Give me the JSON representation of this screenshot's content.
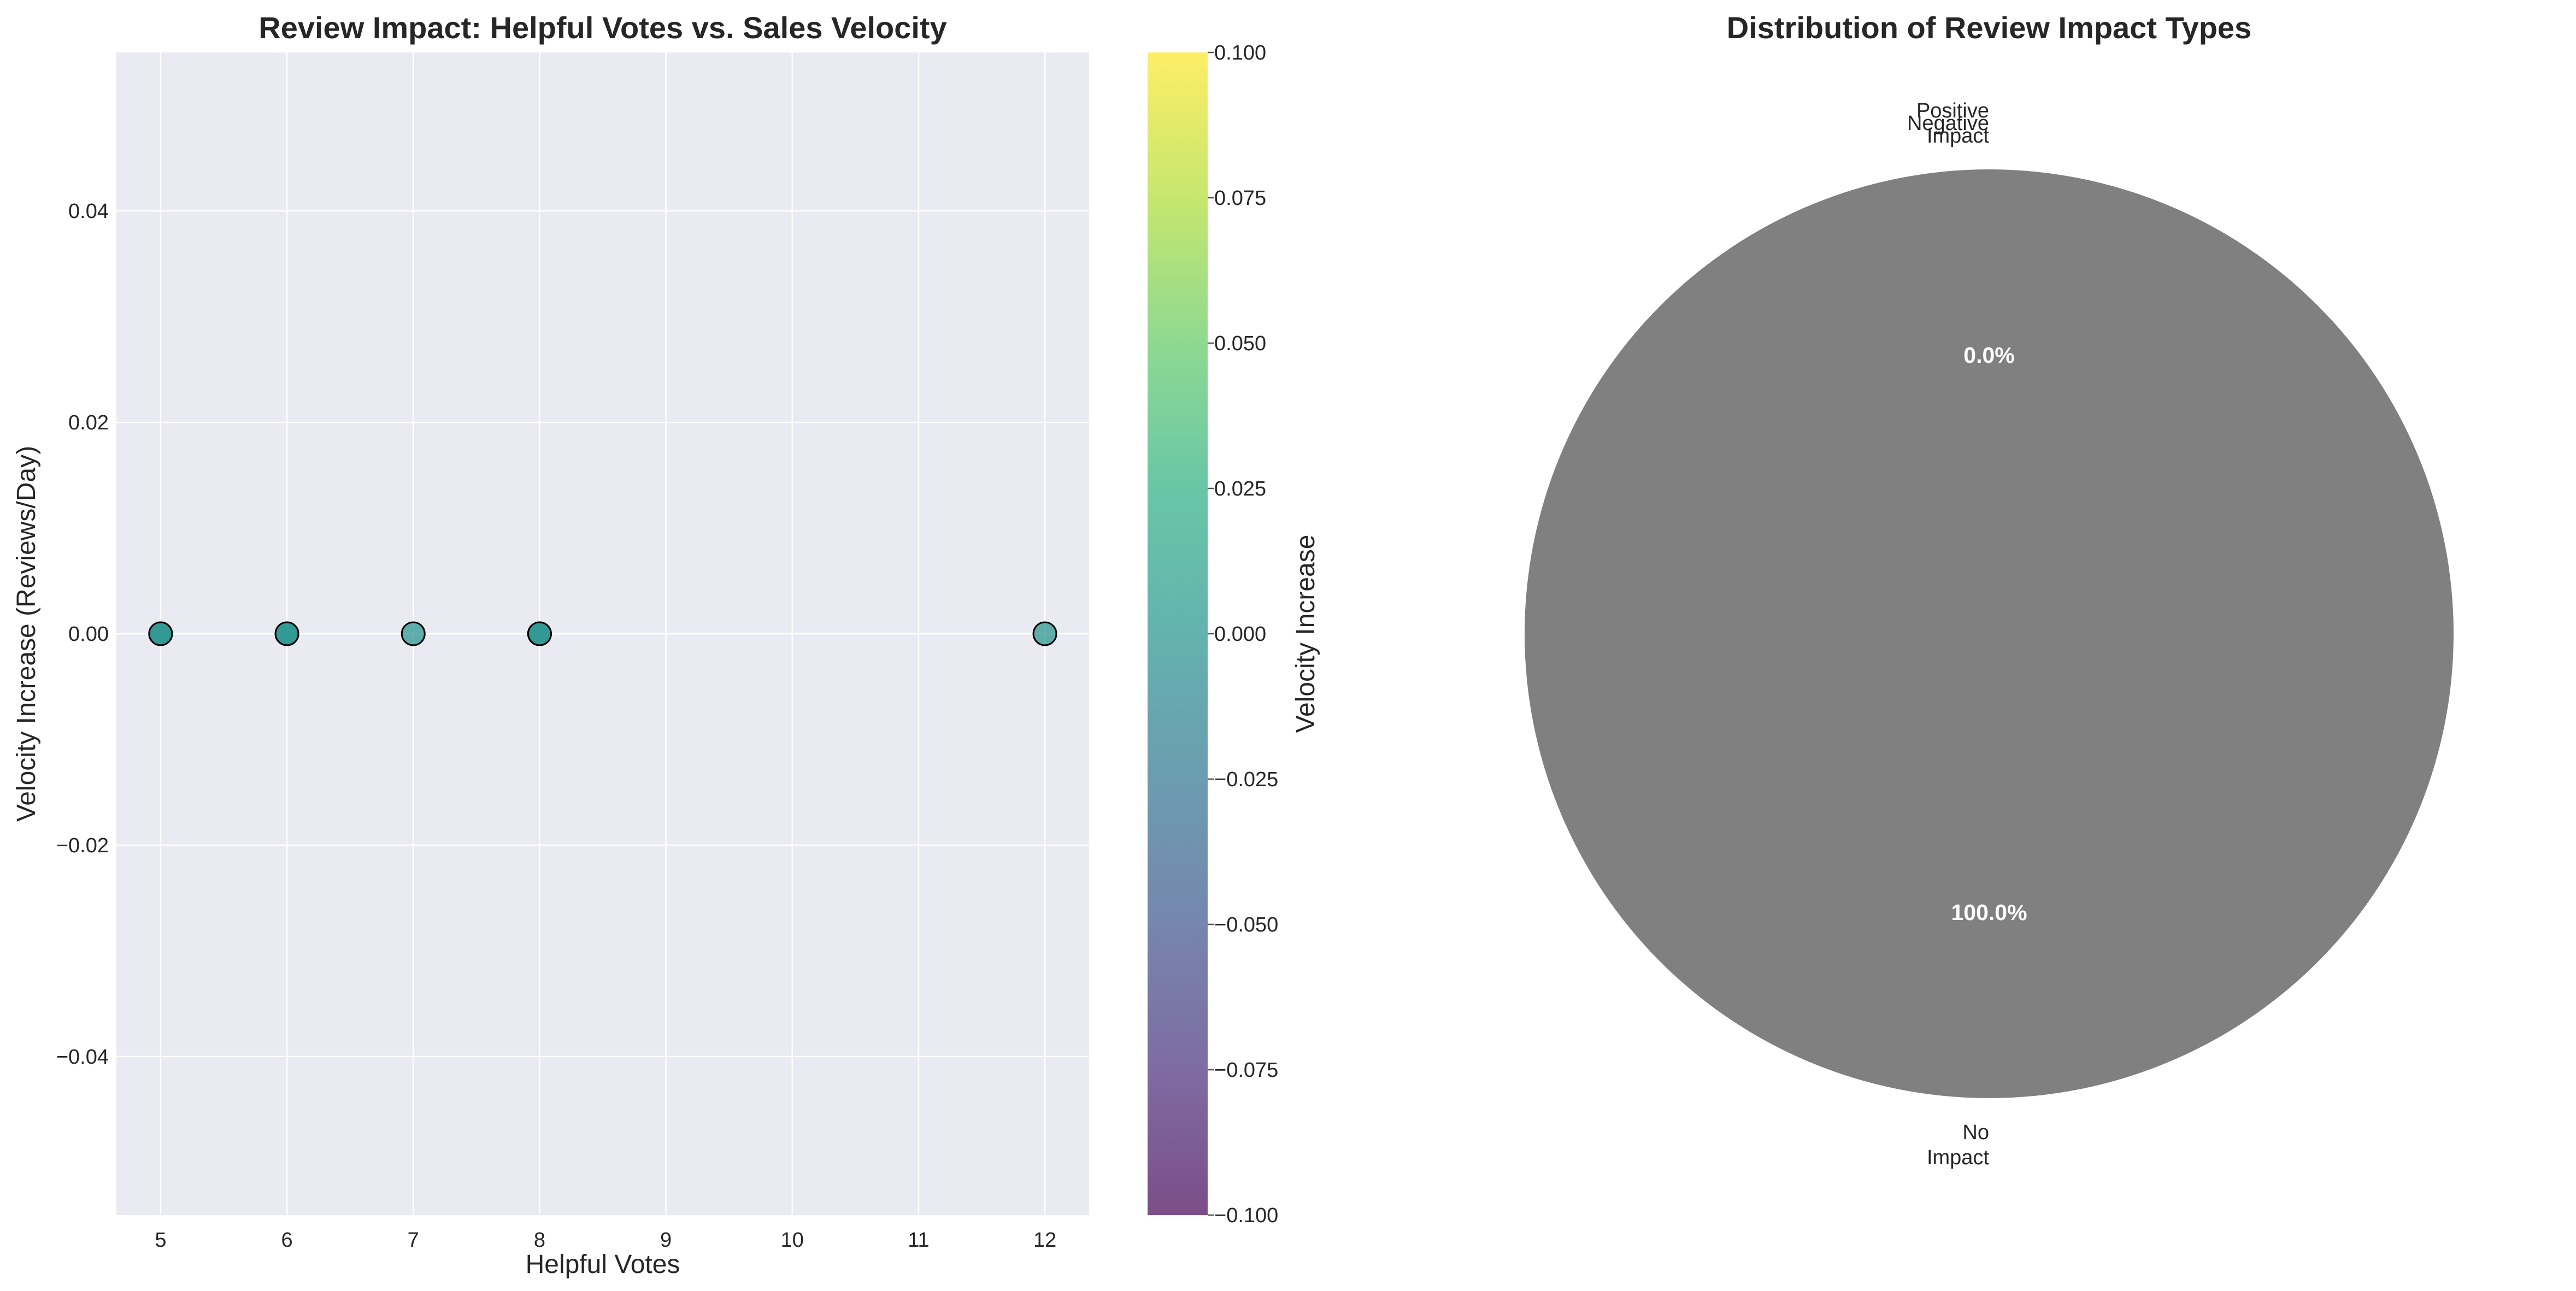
{
  "colors": {
    "plot_background": "#eaeaf2",
    "grid": "#ffffff",
    "pie_no_impact": "#808080",
    "pie_negative": "#d62728",
    "pie_positive": "#2ca02c",
    "marker_edge": "#000000",
    "colormap": "viridis"
  },
  "chart_data": [
    {
      "type": "scatter",
      "title": "Review Impact: Helpful Votes vs. Sales Velocity",
      "xlabel": "Helpful Votes",
      "ylabel": "Velocity Increase (Reviews/Day)",
      "xlim": [
        4.65,
        12.35
      ],
      "ylim": [
        -0.055,
        0.055
      ],
      "xticks": [
        5,
        6,
        7,
        8,
        9,
        10,
        11,
        12
      ],
      "xtick_labels": [
        "5",
        "6",
        "7",
        "8",
        "9",
        "10",
        "11",
        "12"
      ],
      "yticks": [
        -0.04,
        -0.02,
        0.0,
        0.02,
        0.04
      ],
      "ytick_labels": [
        "−0.04",
        "−0.02",
        "0.00",
        "0.02",
        "0.04"
      ],
      "grid": true,
      "points": [
        {
          "x": 5,
          "y": 0.0
        },
        {
          "x": 5,
          "y": 0.0
        },
        {
          "x": 6,
          "y": 0.0
        },
        {
          "x": 6,
          "y": 0.0
        },
        {
          "x": 7,
          "y": 0.0
        },
        {
          "x": 8,
          "y": 0.0
        },
        {
          "x": 8,
          "y": 0.0
        },
        {
          "x": 12,
          "y": 0.0
        }
      ],
      "colorbar": {
        "label": "Velocity Increase",
        "range": [
          -0.1,
          0.1
        ],
        "ticks": [
          -0.1,
          -0.075,
          -0.05,
          -0.025,
          0.0,
          0.025,
          0.05,
          0.075,
          0.1
        ],
        "tick_labels": [
          "−0.100",
          "−0.075",
          "−0.050",
          "−0.025",
          "0.000",
          "0.025",
          "0.050",
          "0.075",
          "0.100"
        ]
      }
    },
    {
      "type": "pie",
      "title": "Distribution of Review Impact Types",
      "slices": [
        {
          "label": "Negative",
          "value": 0.0,
          "pct_label": "",
          "color_key": "pie_negative"
        },
        {
          "label": "Positive\nImpact",
          "value": 0.0,
          "pct_label": "0.0%",
          "color_key": "pie_positive"
        },
        {
          "label": "No\nImpact",
          "value": 100.0,
          "pct_label": "100.0%",
          "color_key": "pie_no_impact"
        }
      ]
    }
  ]
}
